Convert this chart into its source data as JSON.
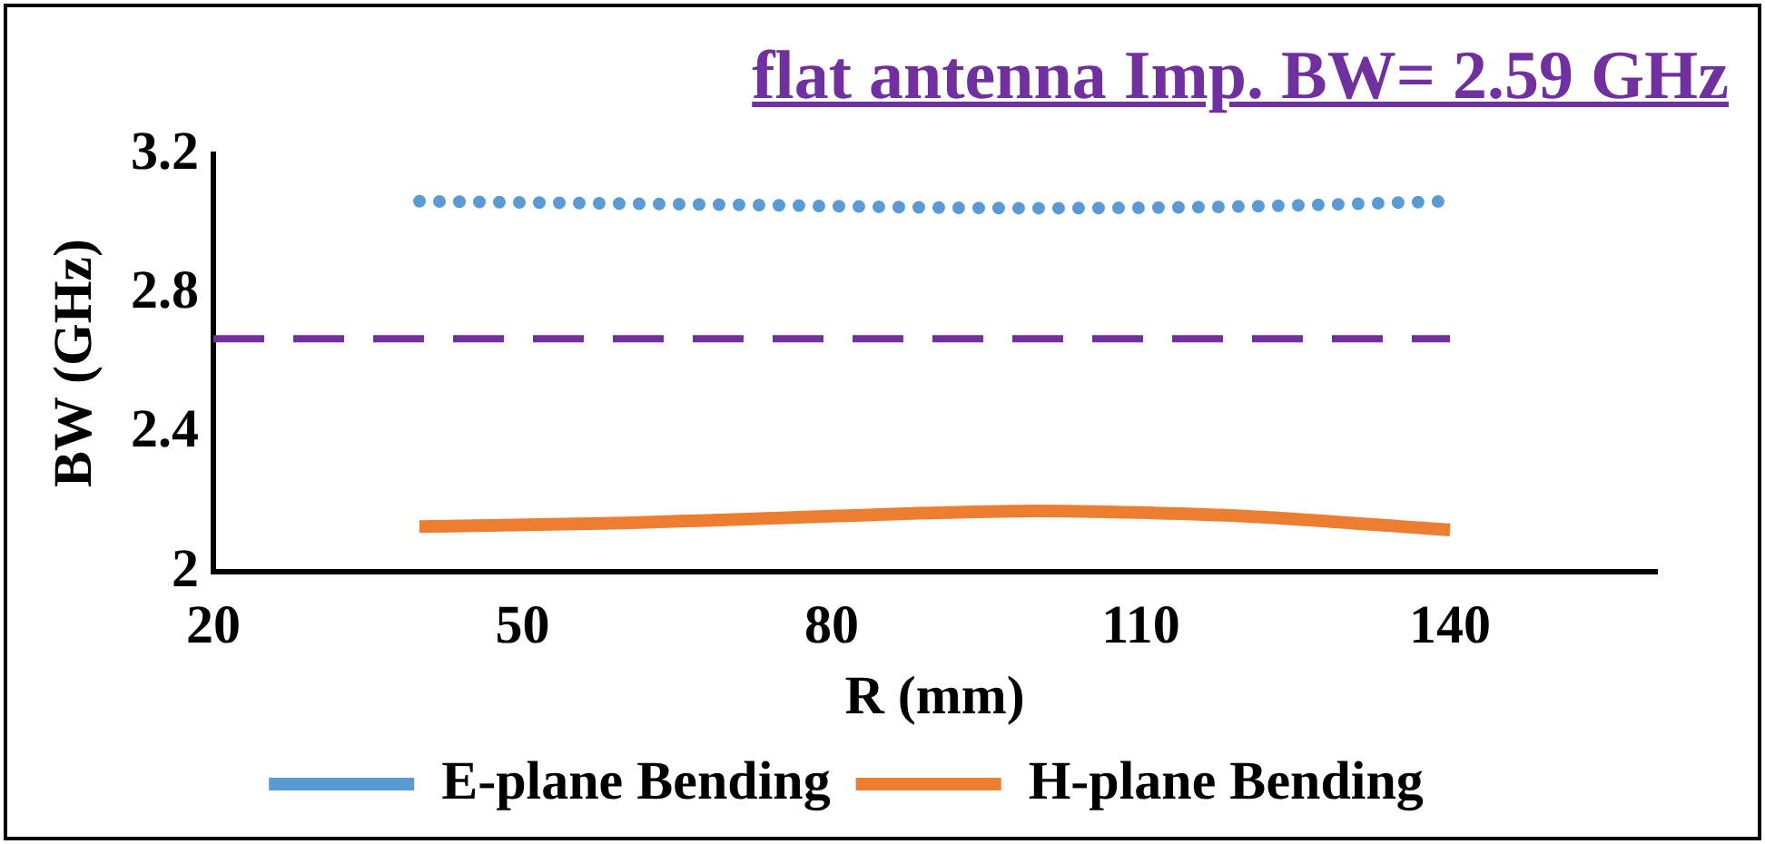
{
  "chart_data": {
    "type": "line",
    "title": "flat antenna Imp. BW= 2.59 GHz",
    "xlabel": "R (mm)",
    "ylabel": "BW (GHz)",
    "xlim": [
      20,
      160
    ],
    "xticks": [
      20,
      50,
      80,
      110,
      140
    ],
    "ylim": [
      2,
      3.2
    ],
    "yticks": [
      2,
      2.4,
      2.8,
      3.2
    ],
    "grid": false,
    "legend": "bottom",
    "marker": "none",
    "series": [
      {
        "name": "E-plane Bending",
        "color": "#5b9bd5",
        "line_style": "dotted",
        "x": [
          40,
          70,
          100,
          120,
          140
        ],
        "values": [
          3.065,
          3.055,
          3.045,
          3.05,
          3.065
        ]
      },
      {
        "name": "H-plane Bending",
        "color": "#ed7d31",
        "line_style": "solid",
        "x": [
          40,
          60,
          80,
          100,
          110,
          120,
          140
        ],
        "values": [
          2.13,
          2.14,
          2.16,
          2.175,
          2.17,
          2.16,
          2.12
        ]
      },
      {
        "color": "#7030a0",
        "line_style": "dashed",
        "x": [
          20,
          140
        ],
        "values": [
          2.67,
          2.67
        ]
      }
    ]
  }
}
